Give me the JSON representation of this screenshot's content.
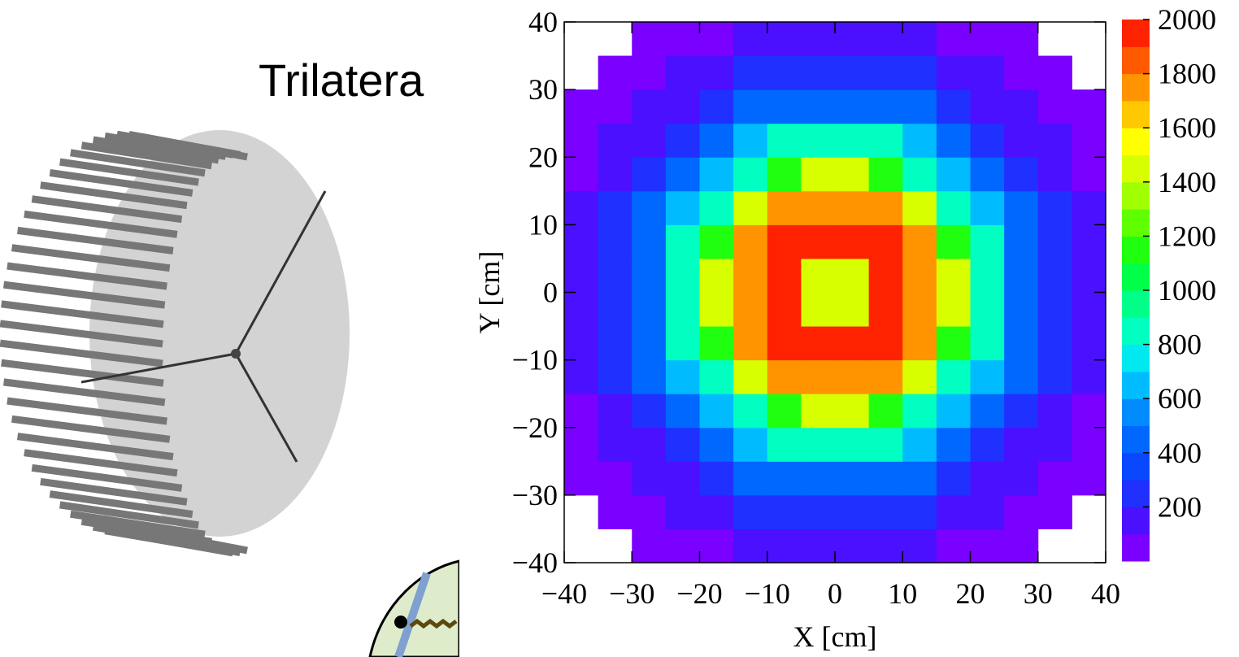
{
  "slide": {
    "title": "Trilatera"
  },
  "chart_data": {
    "type": "heatmap",
    "xlabel": "X [cm]",
    "ylabel": "Y [cm]",
    "x_bins": [
      -40,
      -35,
      -30,
      -25,
      -20,
      -15,
      -10,
      -5,
      0,
      5,
      10,
      15,
      20,
      25,
      30,
      35,
      40
    ],
    "y_bins": [
      -40,
      -35,
      -30,
      -25,
      -20,
      -15,
      -10,
      -5,
      0,
      5,
      10,
      15,
      20,
      25,
      30,
      35,
      40
    ],
    "z": [
      [
        null,
        null,
        80,
        80,
        80,
        150,
        150,
        150,
        150,
        150,
        150,
        80,
        80,
        80,
        null,
        null
      ],
      [
        null,
        80,
        80,
        150,
        150,
        250,
        250,
        250,
        250,
        250,
        250,
        150,
        150,
        80,
        80,
        null
      ],
      [
        80,
        80,
        150,
        150,
        250,
        400,
        400,
        400,
        400,
        400,
        400,
        250,
        150,
        150,
        80,
        80
      ],
      [
        80,
        150,
        150,
        250,
        400,
        600,
        850,
        850,
        850,
        850,
        600,
        400,
        250,
        150,
        150,
        80
      ],
      [
        80,
        150,
        250,
        400,
        600,
        850,
        1100,
        1400,
        1400,
        1100,
        850,
        600,
        400,
        250,
        150,
        80
      ],
      [
        150,
        250,
        400,
        600,
        850,
        1400,
        1700,
        1700,
        1700,
        1700,
        1400,
        850,
        600,
        400,
        250,
        150
      ],
      [
        150,
        250,
        400,
        850,
        1100,
        1700,
        1900,
        1900,
        1900,
        1900,
        1700,
        1100,
        850,
        400,
        250,
        150
      ],
      [
        150,
        250,
        400,
        850,
        1400,
        1700,
        1900,
        1400,
        1400,
        1900,
        1700,
        1400,
        850,
        400,
        250,
        150
      ],
      [
        150,
        250,
        400,
        850,
        1400,
        1700,
        1900,
        1400,
        1400,
        1900,
        1700,
        1400,
        850,
        400,
        250,
        150
      ],
      [
        150,
        250,
        400,
        850,
        1100,
        1700,
        1900,
        1900,
        1900,
        1900,
        1700,
        1100,
        850,
        400,
        250,
        150
      ],
      [
        150,
        250,
        400,
        600,
        850,
        1400,
        1700,
        1700,
        1700,
        1700,
        1400,
        850,
        600,
        400,
        250,
        150
      ],
      [
        80,
        150,
        250,
        400,
        600,
        850,
        1100,
        1400,
        1400,
        1100,
        850,
        600,
        400,
        250,
        150,
        80
      ],
      [
        80,
        150,
        150,
        250,
        400,
        600,
        850,
        850,
        850,
        850,
        600,
        400,
        250,
        150,
        150,
        80
      ],
      [
        80,
        80,
        150,
        150,
        250,
        400,
        400,
        400,
        400,
        400,
        400,
        250,
        150,
        150,
        80,
        80
      ],
      [
        null,
        80,
        80,
        150,
        150,
        250,
        250,
        250,
        250,
        250,
        250,
        150,
        150,
        80,
        80,
        null
      ],
      [
        null,
        null,
        80,
        80,
        80,
        150,
        150,
        150,
        150,
        150,
        150,
        80,
        80,
        80,
        null,
        null
      ]
    ],
    "xlim": [
      -40,
      40
    ],
    "ylim": [
      -40,
      40
    ],
    "xticks": [
      {
        "value": -40,
        "label": "−40"
      },
      {
        "value": -30,
        "label": "−30"
      },
      {
        "value": -20,
        "label": "−20"
      },
      {
        "value": -10,
        "label": "−10"
      },
      0,
      10,
      20,
      30,
      40
    ],
    "yticks": [
      {
        "value": -40,
        "label": "−40"
      },
      {
        "value": -30,
        "label": "−30"
      },
      {
        "value": -20,
        "label": "−20"
      },
      {
        "value": -10,
        "label": "−10"
      },
      0,
      10,
      20,
      30,
      40
    ],
    "zlim": [
      0,
      2000
    ],
    "zticks": [
      200,
      400,
      600,
      800,
      1000,
      1200,
      1400,
      1600,
      1800,
      2000
    ],
    "colors": [
      "#7a00ff",
      "#4a10ff",
      "#2030ff",
      "#0a48ff",
      "#0068ff",
      "#008cff",
      "#00bcff",
      "#00e8f0",
      "#00ffc0",
      "#00ff88",
      "#00ff48",
      "#20ff10",
      "#60ff00",
      "#a0ff00",
      "#d8ff00",
      "#ffff00",
      "#ffc800",
      "#ff9400",
      "#ff5a00",
      "#ff2200"
    ]
  }
}
